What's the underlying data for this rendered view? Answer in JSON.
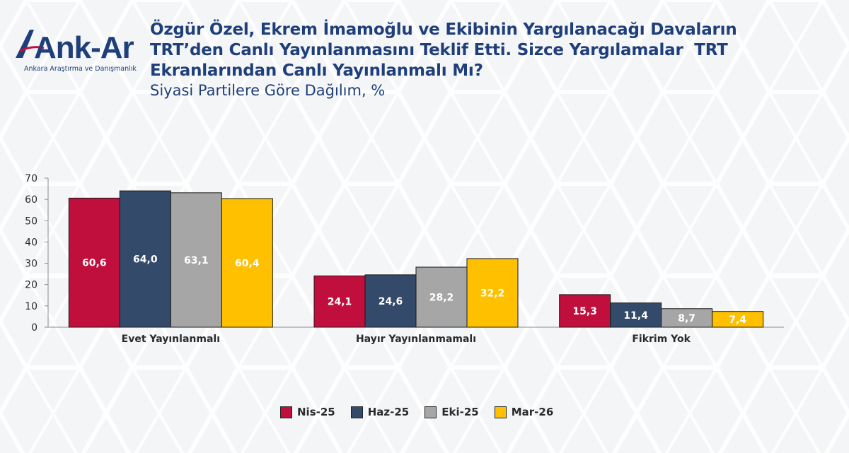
{
  "header": {
    "logo_text": "Ank-Ar",
    "logo_subtitle": "Ankara Araştırma ve Danışmanlık",
    "title": "Özgür Özel, Ekrem İmamoğlu ve Ekibinin Yargılanacağı Davaların\nTRT’den Canlı Yayınlanmasını Teklif Etti. Sizce Yargılamalar  TRT\nEkranlarından Canlı Yayınlanmalı Mı?",
    "subtitle": "Siyasi Partilere Göre Dağılım, %"
  },
  "colors": {
    "title": "#1f3f7a",
    "series": [
      "#c00f3c",
      "#344a6a",
      "#a6a6a6",
      "#ffc000"
    ]
  },
  "chart_data": {
    "type": "bar",
    "categories": [
      "Evet Yayınlanmalı",
      "Hayır Yayınlanmamalı",
      "Fikrim Yok"
    ],
    "series": [
      {
        "name": "Nis-25",
        "values": [
          60.6,
          24.1,
          15.3
        ],
        "labels": [
          "60,6",
          "24,1",
          "15,3"
        ]
      },
      {
        "name": "Haz-25",
        "values": [
          64.0,
          24.6,
          11.4
        ],
        "labels": [
          "64,0",
          "24,6",
          "11,4"
        ]
      },
      {
        "name": "Eki-25",
        "values": [
          63.1,
          28.2,
          8.7
        ],
        "labels": [
          "63,1",
          "28,2",
          "8,7"
        ]
      },
      {
        "name": "Mar-26",
        "values": [
          60.4,
          32.2,
          7.4
        ],
        "labels": [
          "60,4",
          "32,2",
          "7,4"
        ]
      }
    ],
    "yticks": [
      "0",
      "10",
      "20",
      "30",
      "40",
      "50",
      "60",
      "70"
    ],
    "ylim": [
      0,
      70
    ],
    "grid": false,
    "legend_position": "bottom"
  }
}
